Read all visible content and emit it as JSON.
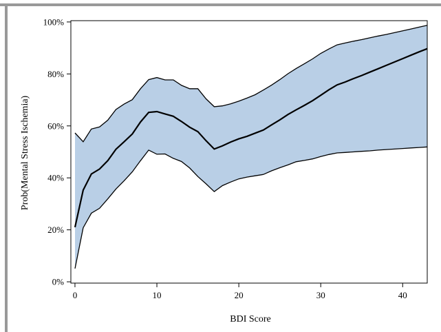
{
  "chart_data": {
    "type": "area",
    "xlabel": "BDI Score",
    "ylabel": "Prob(Mental Stress Ischemia)",
    "xlim": [
      -0.5,
      43
    ],
    "ylim": [
      -0.5,
      100.5
    ],
    "x_ticks": [
      0,
      10,
      20,
      30,
      40
    ],
    "y_ticks": [
      0,
      20,
      40,
      60,
      80,
      100
    ],
    "x_tick_labels": [
      "0",
      "10",
      "20",
      "30",
      "40"
    ],
    "y_tick_labels": [
      "0%",
      "20%",
      "40%",
      "60%",
      "80%",
      "100%"
    ],
    "grid": false,
    "band_color": "#b9cfe6",
    "line_color": "#000000",
    "x": [
      0,
      1,
      2,
      3,
      4,
      5,
      6,
      7,
      8,
      9,
      10,
      11,
      12,
      13,
      14,
      15,
      16,
      17,
      18,
      19,
      20,
      21,
      22,
      23,
      24,
      25,
      26,
      27,
      28,
      29,
      30,
      31,
      32,
      33,
      34,
      35,
      36,
      37,
      38,
      39,
      40,
      41,
      42,
      43
    ],
    "series": [
      {
        "values": [
          21.0,
          35.3,
          41.5,
          43.4,
          46.6,
          51.0,
          53.9,
          56.9,
          61.5,
          65.2,
          65.5,
          64.6,
          63.7,
          61.7,
          59.5,
          57.8,
          54.3,
          51.1,
          52.3,
          53.8,
          55.0,
          56.0,
          57.2,
          58.4,
          60.4,
          62.3,
          64.4,
          66.2,
          67.9,
          69.7,
          71.8,
          73.9,
          75.8,
          76.9,
          78.2,
          79.4,
          80.7,
          82.0,
          83.3,
          84.6,
          85.9,
          87.2,
          88.5,
          89.7
        ]
      }
    ],
    "band_upper": [
      57.3,
      53.9,
      58.8,
      59.6,
      62.2,
      66.3,
      68.4,
      70.1,
      74.3,
      77.8,
      78.6,
      77.7,
      77.7,
      75.6,
      74.3,
      74.3,
      70.4,
      67.4,
      67.7,
      68.5,
      69.5,
      70.7,
      72.0,
      73.8,
      75.7,
      77.8,
      80.1,
      82.1,
      83.9,
      85.8,
      87.9,
      89.6,
      91.2,
      91.9,
      92.6,
      93.2,
      93.9,
      94.6,
      95.2,
      95.9,
      96.6,
      97.3,
      98.0,
      98.7
    ],
    "band_lower": [
      5.1,
      20.8,
      26.4,
      28.3,
      31.9,
      35.7,
      38.9,
      42.3,
      46.6,
      50.7,
      49.1,
      49.2,
      47.5,
      46.3,
      43.8,
      40.5,
      37.7,
      34.7,
      37.0,
      38.4,
      39.6,
      40.3,
      40.8,
      41.3,
      42.7,
      43.9,
      45.0,
      46.2,
      46.7,
      47.3,
      48.2,
      49.0,
      49.6,
      49.8,
      50.0,
      50.2,
      50.4,
      50.7,
      50.9,
      51.1,
      51.3,
      51.5,
      51.7,
      51.9
    ]
  }
}
